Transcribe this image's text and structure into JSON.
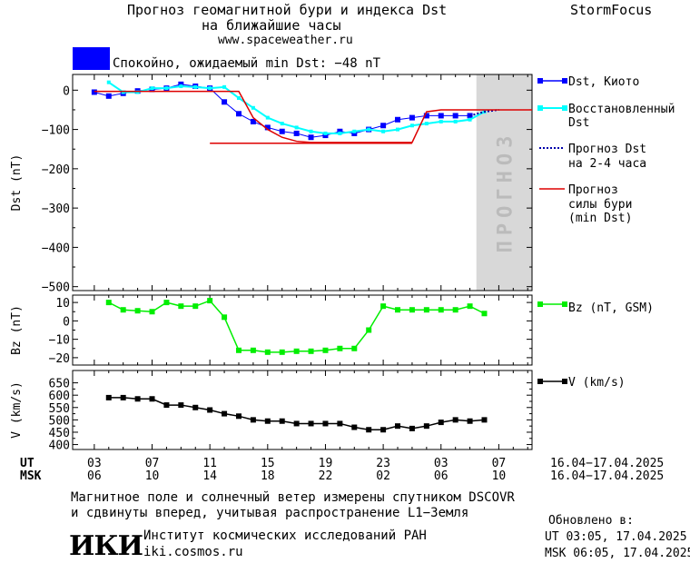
{
  "header": {
    "title_line1": "Прогноз геомагнитной бури и индекса Dst",
    "title_line2": "на ближайшие часы",
    "url": "www.spaceweather.ru",
    "brand": "StormFocus"
  },
  "status": {
    "text": "Спокойно, ожидаемый min Dst: −48 nT",
    "color": "#0000ff"
  },
  "colors": {
    "dst_kyoto": "#0000ff",
    "dst_restored": "#00ffff",
    "dst_forecast": "#0000aa",
    "storm_forecast": "#dd0000",
    "bz": "#00ee00",
    "v": "#000000",
    "forecast_zone": "#d8d8d8"
  },
  "chart_data": [
    {
      "type": "line",
      "name": "dst",
      "ylabel": "Dst (nT)",
      "ylim": [
        -510,
        40
      ],
      "yticks": [
        0,
        -100,
        -200,
        -300,
        -400,
        -500
      ],
      "ytick_labels": [
        "0",
        "−100",
        "−200",
        "−300",
        "−400",
        "−500"
      ],
      "forecast_zone": {
        "x_from": 55.9,
        "x_to": 63.6,
        "label": "ПРОГНОЗ"
      },
      "series": [
        {
          "name": "Dst, Киото",
          "x": [
            3,
            5,
            7,
            9,
            11,
            13,
            15,
            17,
            19,
            21,
            23,
            25,
            27,
            29,
            31,
            33,
            35,
            37,
            39,
            41,
            43,
            45,
            47,
            49,
            51,
            53,
            55
          ],
          "y": [
            -5,
            -15,
            -8,
            -2,
            2,
            5,
            15,
            10,
            5,
            -30,
            -60,
            -80,
            -95,
            -105,
            -110,
            -120,
            -115,
            -105,
            -110,
            -100,
            -90,
            -75,
            -70,
            -65,
            -65,
            -65,
            -65
          ]
        },
        {
          "name": "Восстановленный Dst",
          "x": [
            5,
            7,
            9,
            11,
            13,
            15,
            17,
            19,
            21,
            23,
            25,
            27,
            29,
            31,
            33,
            35,
            37,
            39,
            41,
            43,
            45,
            47,
            49,
            51,
            53,
            55,
            57
          ],
          "y": [
            20,
            -5,
            -5,
            5,
            5,
            10,
            8,
            5,
            8,
            -20,
            -45,
            -70,
            -85,
            -95,
            -105,
            -110,
            -110,
            -105,
            -100,
            -105,
            -100,
            -90,
            -85,
            -80,
            -80,
            -75,
            -55
          ]
        },
        {
          "name": "Прогноз Dst на 2-4 часа",
          "x": [
            55,
            57,
            59
          ],
          "y": [
            -65,
            -55,
            -50
          ]
        },
        {
          "name": "Прогноз силы бури (min Dst)",
          "x": [
            3,
            23,
            25,
            27,
            29,
            31,
            33,
            35,
            37,
            39,
            47,
            49,
            51,
            53,
            55,
            57,
            59,
            63.6
          ],
          "y": [
            -3,
            -3,
            -70,
            -100,
            -120,
            -130,
            -133,
            -133,
            -133,
            -133,
            -133,
            -55,
            -50,
            -50,
            -50,
            -50,
            -50,
            -50
          ]
        },
        {
          "name": "",
          "x": [
            19,
            47
          ],
          "y": [
            -135,
            -135
          ]
        }
      ]
    },
    {
      "type": "line",
      "name": "bz",
      "ylabel": "Bz (nT)",
      "ylim": [
        -24,
        14
      ],
      "yticks": [
        10,
        0,
        -10,
        -20
      ],
      "ytick_labels": [
        "10",
        "0",
        "−10",
        "−20"
      ],
      "series": [
        {
          "name": "Bz (nT, GSM)",
          "x": [
            5,
            7,
            9,
            11,
            13,
            15,
            17,
            19,
            21,
            23,
            25,
            27,
            29,
            31,
            33,
            35,
            37,
            39,
            41,
            43,
            45,
            47,
            49,
            51,
            53,
            55,
            57
          ],
          "y": [
            10,
            6,
            5.5,
            5,
            10,
            8,
            8,
            11,
            2,
            -16,
            -16,
            -17,
            -17,
            -16.5,
            -16.5,
            -16,
            -15,
            -15,
            -5,
            8,
            6,
            6,
            6,
            6,
            6,
            8,
            4
          ]
        }
      ]
    },
    {
      "type": "line",
      "name": "v",
      "ylabel": "V (km/s)",
      "ylim": [
        380,
        700
      ],
      "yticks": [
        650,
        600,
        550,
        500,
        450,
        400
      ],
      "ytick_labels": [
        "650",
        "600",
        "550",
        "500",
        "450",
        "400"
      ],
      "series": [
        {
          "name": "V (km/s)",
          "x": [
            5,
            7,
            9,
            11,
            13,
            15,
            17,
            19,
            21,
            23,
            25,
            27,
            29,
            31,
            33,
            35,
            37,
            39,
            41,
            43,
            45,
            47,
            49,
            51,
            53,
            55,
            57
          ],
          "y": [
            590,
            590,
            585,
            585,
            560,
            560,
            550,
            540,
            525,
            515,
            500,
            495,
            495,
            485,
            485,
            485,
            485,
            470,
            460,
            460,
            475,
            465,
            475,
            490,
            500,
            495,
            500
          ]
        }
      ]
    }
  ],
  "xaxis": {
    "ut_label": "UT",
    "msk_label": "MSK",
    "ut_ticks": [
      "03",
      "07",
      "11",
      "15",
      "19",
      "23",
      "03",
      "07"
    ],
    "msk_ticks": [
      "06",
      "10",
      "14",
      "18",
      "22",
      "02",
      "06",
      "10"
    ],
    "ut_range": "16.04−17.04.2025",
    "msk_range": "16.04−17.04.2025"
  },
  "legend": {
    "dst_kyoto": "Dst, Киото",
    "restored_1": "Восстановленный",
    "restored_2": "Dst",
    "forecast_1": "Прогноз Dst",
    "forecast_2": "на 2-4 часа",
    "storm_1": "Прогноз",
    "storm_2": "силы бури",
    "storm_3": "(min Dst)",
    "bz": "Bz (nT, GSM)",
    "v": "V (km/s)"
  },
  "footer": {
    "line1": "Магнитное поле и солнечный ветер измерены спутником DSCOVR",
    "line2": "и сдвинуты вперед, учитывая распространение L1−Земля"
  },
  "institute": {
    "logo": "ИКИ",
    "name": "Институт космических исследований РАН",
    "url": "iki.cosmos.ru"
  },
  "updated": {
    "label": "Обновлено в:",
    "ut": "UT  03:05, 17.04.2025",
    "msk": "MSK 06:05, 17.04.2025"
  }
}
